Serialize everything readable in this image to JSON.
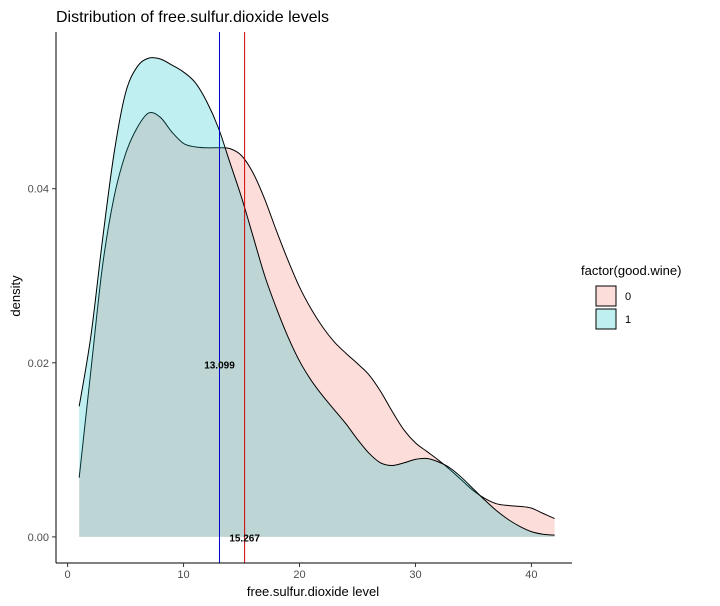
{
  "chart_data": {
    "type": "area",
    "title": "Distribution of free.sulfur.dioxide levels",
    "xlabel": "free.sulfur.dioxide level",
    "ylabel": "density",
    "xlim": [
      -1,
      43.5
    ],
    "ylim": [
      -0.003,
      0.058
    ],
    "x_ticks": [
      0,
      10,
      20,
      30,
      40
    ],
    "x_tick_labels": [
      "0",
      "10",
      "20",
      "30",
      "40"
    ],
    "y_ticks": [
      0.0,
      0.02,
      0.04
    ],
    "y_tick_labels": [
      "0.00",
      "0.02",
      "0.04"
    ],
    "grid": false,
    "legend": {
      "title": "factor(good.wine)",
      "position": "right"
    },
    "series": [
      {
        "name": "0",
        "color": "#F8766D",
        "fill": "#F8766D",
        "fill_opacity": 0.25,
        "points": [
          [
            1,
            0.0068
          ],
          [
            2,
            0.019
          ],
          [
            3,
            0.031
          ],
          [
            4,
            0.039
          ],
          [
            5,
            0.044
          ],
          [
            6,
            0.047
          ],
          [
            7,
            0.0487
          ],
          [
            8,
            0.0482
          ],
          [
            9,
            0.0465
          ],
          [
            10,
            0.0452
          ],
          [
            11,
            0.0448
          ],
          [
            12,
            0.0447
          ],
          [
            13,
            0.0447
          ],
          [
            14,
            0.0446
          ],
          [
            15,
            0.0438
          ],
          [
            16,
            0.0418
          ],
          [
            17,
            0.0388
          ],
          [
            18,
            0.0352
          ],
          [
            19,
            0.0318
          ],
          [
            20,
            0.0287
          ],
          [
            21,
            0.0262
          ],
          [
            22,
            0.0241
          ],
          [
            23,
            0.0224
          ],
          [
            24,
            0.0211
          ],
          [
            25,
            0.0199
          ],
          [
            26,
            0.0186
          ],
          [
            27,
            0.0167
          ],
          [
            28,
            0.0144
          ],
          [
            29,
            0.0123
          ],
          [
            30,
            0.0108
          ],
          [
            31,
            0.0098
          ],
          [
            32,
            0.0088
          ],
          [
            33,
            0.0077
          ],
          [
            34,
            0.0065
          ],
          [
            35,
            0.0053
          ],
          [
            36,
            0.0044
          ],
          [
            37,
            0.0038
          ],
          [
            38,
            0.0036
          ],
          [
            39,
            0.0035
          ],
          [
            40,
            0.0033
          ],
          [
            41,
            0.0027
          ],
          [
            42,
            0.0021
          ]
        ]
      },
      {
        "name": "1",
        "color": "#00BFC4",
        "fill": "#00BFC4",
        "fill_opacity": 0.25,
        "points": [
          [
            1,
            0.015
          ],
          [
            2,
            0.023
          ],
          [
            3,
            0.034
          ],
          [
            4,
            0.044
          ],
          [
            5,
            0.051
          ],
          [
            6,
            0.054
          ],
          [
            7,
            0.055
          ],
          [
            8,
            0.0549
          ],
          [
            9,
            0.0542
          ],
          [
            10,
            0.0534
          ],
          [
            11,
            0.0522
          ],
          [
            12,
            0.05
          ],
          [
            13,
            0.047
          ],
          [
            14,
            0.043
          ],
          [
            15,
            0.039
          ],
          [
            16,
            0.0345
          ],
          [
            17,
            0.03
          ],
          [
            18,
            0.0263
          ],
          [
            19,
            0.023
          ],
          [
            20,
            0.0202
          ],
          [
            21,
            0.018
          ],
          [
            22,
            0.0162
          ],
          [
            23,
            0.0146
          ],
          [
            24,
            0.013
          ],
          [
            25,
            0.0112
          ],
          [
            26,
            0.0096
          ],
          [
            27,
            0.0085
          ],
          [
            28,
            0.0082
          ],
          [
            29,
            0.0085
          ],
          [
            30,
            0.0089
          ],
          [
            31,
            0.009
          ],
          [
            32,
            0.0086
          ],
          [
            33,
            0.0079
          ],
          [
            34,
            0.0068
          ],
          [
            35,
            0.0055
          ],
          [
            36,
            0.0042
          ],
          [
            37,
            0.003
          ],
          [
            38,
            0.002
          ],
          [
            39,
            0.0012
          ],
          [
            40,
            0.0006
          ],
          [
            41,
            0.0003
          ],
          [
            42,
            0.0002
          ]
        ]
      }
    ],
    "vlines": [
      {
        "x": 13.099,
        "color": "#0000CD",
        "label": "13.099",
        "label_y": 0.0198
      },
      {
        "x": 15.267,
        "color": "#CD0000",
        "label": "15.267",
        "label_y": -5e-05
      }
    ]
  }
}
